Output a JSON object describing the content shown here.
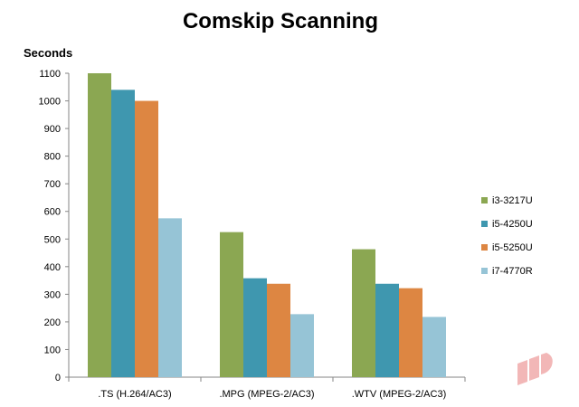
{
  "chart_data": {
    "type": "bar",
    "title": "Comskip Scanning",
    "ylabel": "Seconds",
    "xlabel": "",
    "categories": [
      ".TS (H.264/AC3)",
      ".MPG (MPEG-2/AC3)",
      ".WTV (MPEG-2/AC3)"
    ],
    "series": [
      {
        "name": "i3-3217U",
        "color": "#8BA752",
        "values": [
          1100,
          525,
          463
        ]
      },
      {
        "name": "i5-4250U",
        "color": "#3F97AF",
        "values": [
          1040,
          358,
          338
        ]
      },
      {
        "name": "i5-5250U",
        "color": "#DD8642",
        "values": [
          1000,
          338,
          322
        ]
      },
      {
        "name": "i7-4770R",
        "color": "#96C4D6",
        "values": [
          575,
          228,
          218
        ]
      }
    ],
    "ylim": [
      0,
      1100
    ],
    "yticks": [
      0,
      100,
      200,
      300,
      400,
      500,
      600,
      700,
      800,
      900,
      1000,
      1100
    ],
    "grid": false,
    "legend": "right",
    "logo": {
      "name": "watermark-logo",
      "color": "#F2B7B7"
    }
  }
}
